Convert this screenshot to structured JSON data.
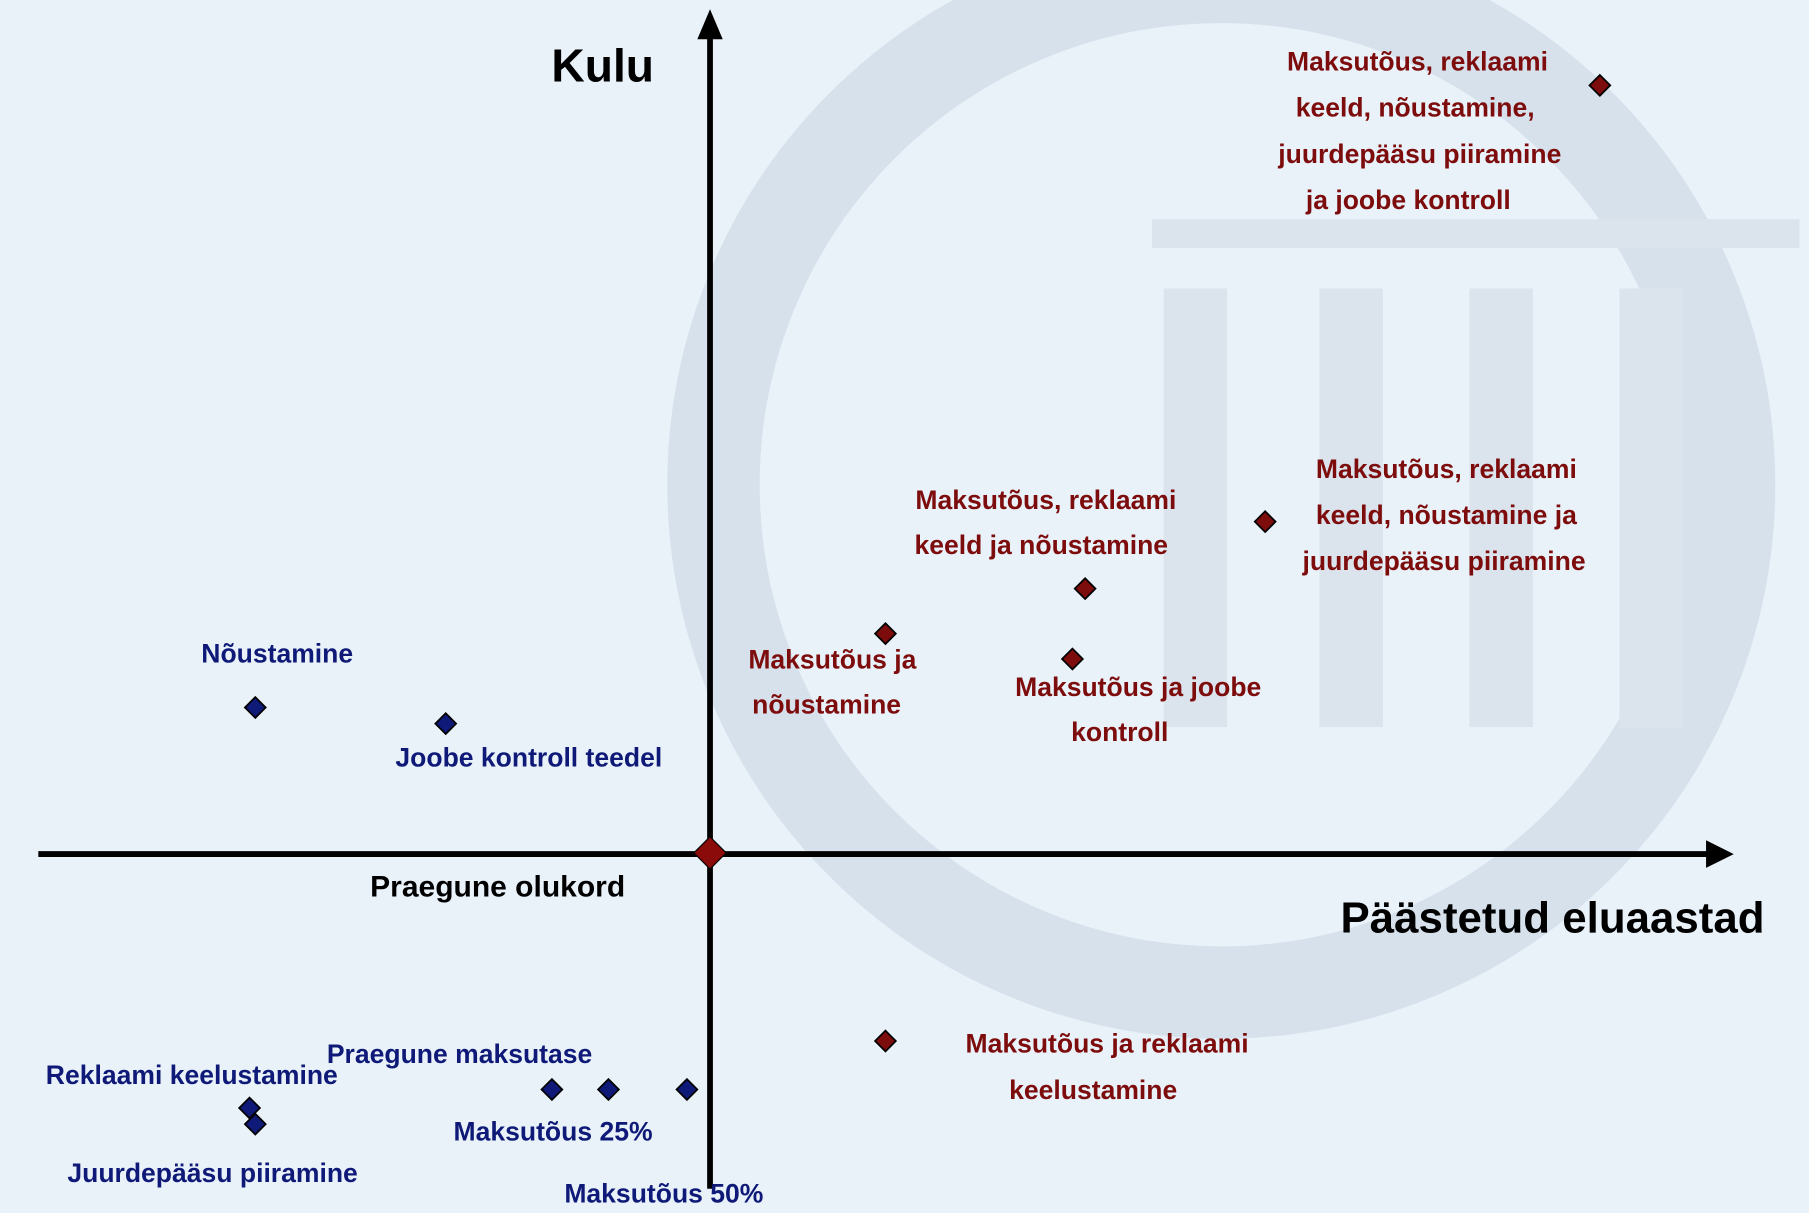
{
  "axes": {
    "y_label": "Kulu",
    "x_label": "Päästetud eluaastad"
  },
  "origin": {
    "label": "Praegune olukord"
  },
  "points": [
    {
      "lines": [
        "Nõustamine"
      ]
    },
    {
      "lines": [
        "Joobe kontroll teedel"
      ]
    },
    {
      "lines": [
        "Reklaami keelustamine"
      ]
    },
    {
      "lines": [
        "Juurdepääsu piiramine"
      ]
    },
    {
      "lines": [
        "Praegune maksutase"
      ]
    },
    {
      "lines": [
        "Maksutõus 25%"
      ]
    },
    {
      "lines": [
        "Maksutõus 50%"
      ]
    },
    {
      "lines": [
        "Maksutõus ja",
        "nõustamine"
      ]
    },
    {
      "lines": [
        "Maksutõus, reklaami",
        "keeld ja nõustamine"
      ]
    },
    {
      "lines": [
        "Maksutõus ja joobe",
        "kontroll"
      ]
    },
    {
      "lines": [
        "Maksutõus, reklaami",
        "keeld, nõustamine ja",
        "juurdepääsu piiramine"
      ]
    },
    {
      "lines": [
        "Maksutõus, reklaami",
        "keeld, nõustamine,",
        "juurdepääsu piiramine",
        "ja joobe kontroll"
      ]
    },
    {
      "lines": [
        "Maksutõus ja reklaami",
        "keelustamine"
      ]
    }
  ]
}
